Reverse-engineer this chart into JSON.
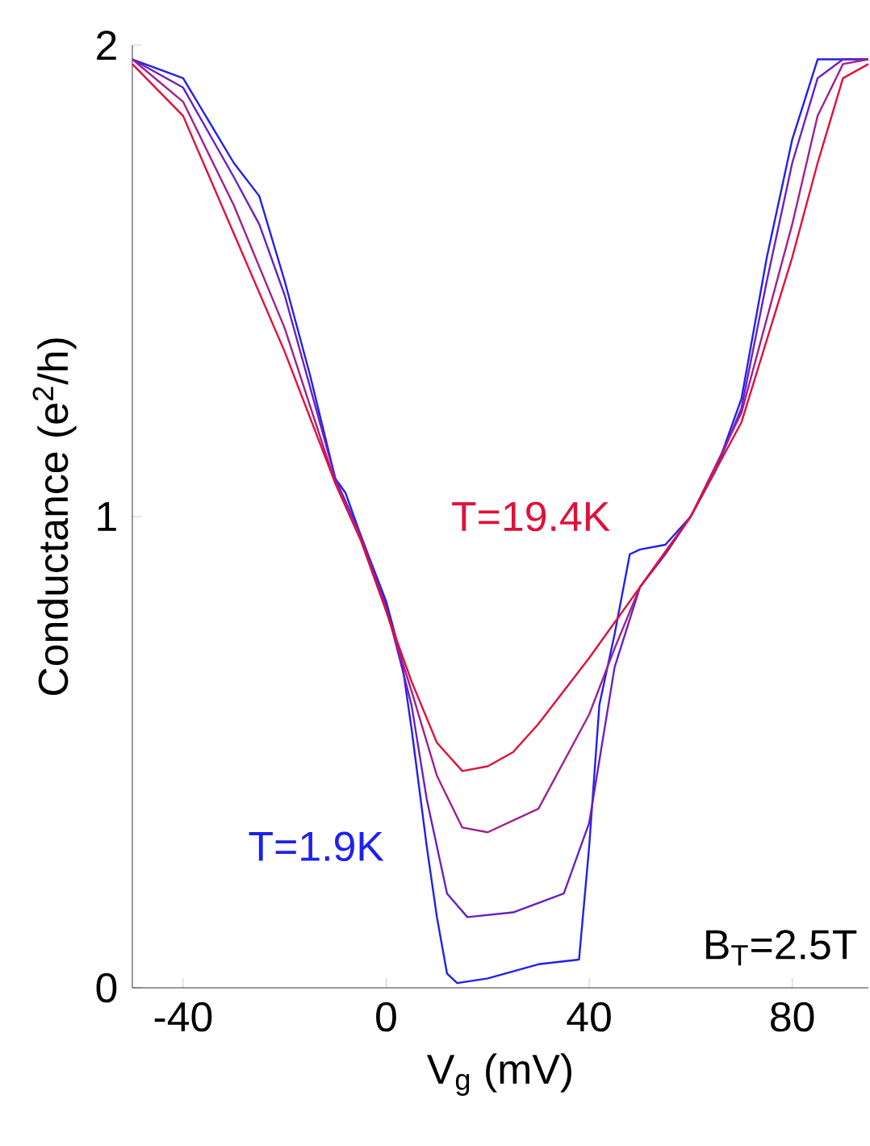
{
  "chart_data": {
    "type": "line",
    "xlabel": "V$_{g}$ (mV)",
    "ylabel": "Conductance (e$^{2}$/h)",
    "xlim": [
      -50,
      95
    ],
    "ylim": [
      0,
      2
    ],
    "xticks": [
      -40,
      0,
      40,
      80
    ],
    "yticks": [
      0,
      1,
      2
    ],
    "grid": false,
    "legend": false,
    "marker": "none",
    "line_style": "solid",
    "annotations": [
      "B$_{T}$=2.5T"
    ],
    "series": [
      {
        "name": "T=1.9K",
        "color": "#2020ee",
        "x": [
          -50,
          -40,
          -30,
          -25,
          -20,
          -15,
          -10,
          -8,
          -5,
          0,
          3,
          5,
          8,
          10,
          12,
          14,
          20,
          30,
          38,
          40,
          42,
          45,
          48,
          50,
          55,
          60,
          65,
          70,
          75,
          80,
          85,
          95
        ],
        "values": [
          1.97,
          1.93,
          1.75,
          1.68,
          1.5,
          1.3,
          1.08,
          1.05,
          0.96,
          0.82,
          0.7,
          0.55,
          0.3,
          0.15,
          0.03,
          0.01,
          0.02,
          0.05,
          0.06,
          0.3,
          0.6,
          0.75,
          0.92,
          0.93,
          0.94,
          1.0,
          1.1,
          1.25,
          1.55,
          1.8,
          1.97,
          1.97
        ]
      },
      {
        "color": "#6a20c0",
        "x": [
          -50,
          -40,
          -30,
          -25,
          -20,
          -10,
          -5,
          0,
          5,
          8,
          12,
          16,
          25,
          35,
          40,
          45,
          50,
          55,
          60,
          65,
          70,
          75,
          80,
          85,
          90,
          95
        ],
        "values": [
          1.97,
          1.91,
          1.72,
          1.62,
          1.47,
          1.08,
          0.96,
          0.81,
          0.6,
          0.4,
          0.2,
          0.15,
          0.16,
          0.2,
          0.35,
          0.68,
          0.85,
          0.92,
          1.0,
          1.1,
          1.23,
          1.5,
          1.75,
          1.93,
          1.97,
          1.97
        ]
      },
      {
        "color": "#a02090",
        "x": [
          -50,
          -40,
          -30,
          -20,
          -10,
          -5,
          0,
          5,
          10,
          15,
          20,
          30,
          40,
          45,
          50,
          60,
          70,
          80,
          85,
          90,
          95
        ],
        "values": [
          1.97,
          1.88,
          1.66,
          1.4,
          1.07,
          0.95,
          0.8,
          0.63,
          0.45,
          0.34,
          0.33,
          0.38,
          0.58,
          0.72,
          0.85,
          1.0,
          1.22,
          1.62,
          1.85,
          1.96,
          1.97
        ]
      },
      {
        "name": "T=19.4K",
        "color": "#e0103a",
        "x": [
          -50,
          -40,
          -30,
          -20,
          -10,
          -5,
          0,
          5,
          10,
          15,
          20,
          25,
          30,
          40,
          50,
          60,
          70,
          80,
          85,
          90,
          95
        ],
        "values": [
          1.96,
          1.85,
          1.6,
          1.35,
          1.07,
          0.95,
          0.8,
          0.65,
          0.52,
          0.46,
          0.47,
          0.5,
          0.56,
          0.7,
          0.85,
          1.0,
          1.2,
          1.55,
          1.75,
          1.93,
          1.96
        ]
      }
    ]
  }
}
